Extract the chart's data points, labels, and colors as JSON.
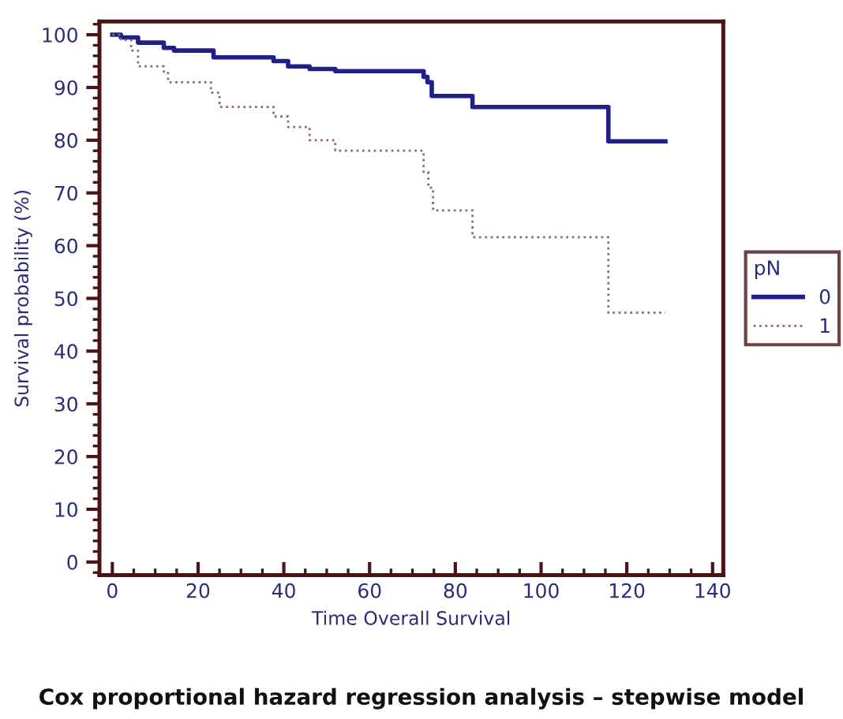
{
  "chart_data": {
    "type": "step",
    "title": "Cox proportional hazard regression analysis – stepwise model",
    "xlabel": "Time Overall Survival",
    "ylabel": "Survival probability (%)",
    "legend_title": "pN",
    "legend": "right",
    "xlim": [
      -3,
      142.5
    ],
    "ylim": [
      -2.5,
      102.5
    ],
    "xticks": [
      0,
      20,
      40,
      60,
      80,
      100,
      120,
      140
    ],
    "yticks": [
      0,
      10,
      20,
      30,
      40,
      50,
      60,
      70,
      80,
      90,
      100
    ],
    "grid": false,
    "series": [
      {
        "name": "0",
        "color": "#1f1f8a",
        "line_style": "solid",
        "x": [
          0,
          2,
          6,
          12,
          14.4,
          23.6,
          37.6,
          41,
          46,
          52,
          72.6,
          73.5,
          74.5,
          84,
          115.7,
          129
        ],
        "values": [
          100,
          99.5,
          98.5,
          97.5,
          97,
          95.7,
          95,
          94,
          93.5,
          93.1,
          92,
          91,
          88.4,
          86.3,
          79.8,
          79.8
        ]
      },
      {
        "name": "1",
        "color": "#8a6a6a",
        "line_style": "dotted",
        "x": [
          0,
          2,
          4.4,
          6,
          12,
          13,
          23,
          25,
          37.6,
          41,
          46,
          52,
          72.6,
          73.7,
          74.8,
          84,
          115.7,
          129
        ],
        "values": [
          100,
          99,
          97,
          94,
          93,
          91,
          89,
          86.3,
          84.5,
          82.5,
          80,
          78,
          74,
          71,
          66.7,
          61.6,
          47.3,
          47.3
        ]
      }
    ]
  }
}
